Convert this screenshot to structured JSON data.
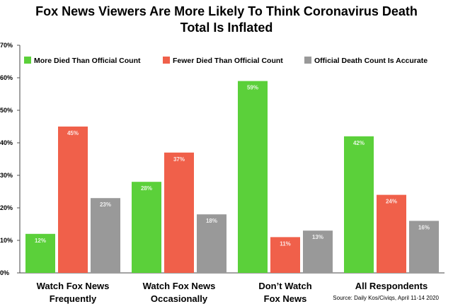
{
  "chart_data": {
    "type": "bar",
    "title_lines": [
      "Fox News Viewers Are More Likely To Think Coronavirus Death",
      "Total Is Inflated"
    ],
    "categories": [
      [
        "Watch Fox News",
        "Frequently"
      ],
      [
        "Watch Fox News",
        "Occasionally"
      ],
      [
        "Don’t Watch",
        "Fox News"
      ],
      [
        "All Respondents"
      ]
    ],
    "series": [
      {
        "name": "More Died Than Official Count",
        "color": "#5bd03a",
        "values": [
          12,
          28,
          59,
          42
        ]
      },
      {
        "name": "Fewer Died Than Official Count",
        "color": "#f0604a",
        "values": [
          45,
          37,
          11,
          24
        ]
      },
      {
        "name": "Official Death Count Is Accurate",
        "color": "#999999",
        "values": [
          23,
          18,
          13,
          16
        ]
      }
    ],
    "y_ticks": [
      "0%",
      "10%",
      "20%",
      "30%",
      "40%",
      "50%",
      "60%",
      "70%"
    ],
    "ylim": [
      0,
      70
    ],
    "value_suffix": "%",
    "legend_position": "top",
    "grid": false,
    "source": "Source: Daily Kos/Civiqs, April 11-14 2020"
  }
}
